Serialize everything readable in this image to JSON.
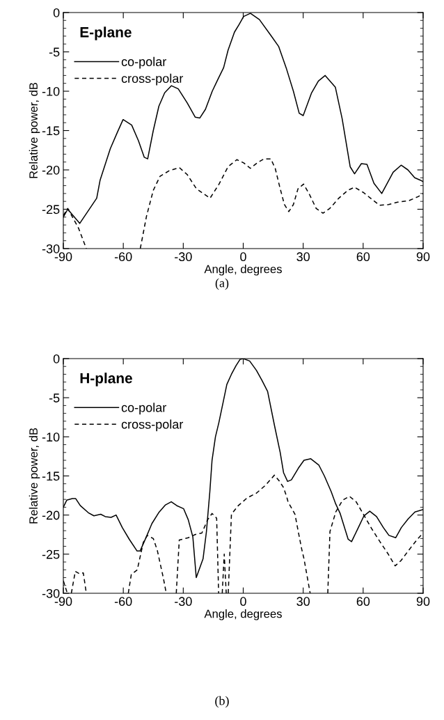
{
  "chart_data": [
    {
      "type": "line",
      "title": "E-plane",
      "xlabel": "Angle, degrees",
      "ylabel": "Relative power, dB",
      "xlim": [
        -90,
        90
      ],
      "xticks": [
        -90,
        -60,
        -30,
        0,
        30,
        60,
        90
      ],
      "ylim": [
        -30,
        0
      ],
      "yticks": [
        -30,
        -25,
        -20,
        -15,
        -10,
        -5,
        0
      ],
      "legend": "top left",
      "grid": false,
      "annotations": [
        "(a)"
      ],
      "series": [
        {
          "name": "co-polar",
          "color": "#000000",
          "line_style": "solid",
          "x": [
            -90,
            -87.8,
            -81.8,
            -73.3,
            -71.6,
            -66.5,
            -63.1,
            -60.1,
            -55.8,
            -52.4,
            -49.5,
            -47.8,
            -45.0,
            -42.2,
            -39.3,
            -35.9,
            -32.5,
            -28.0,
            -24.0,
            -21.7,
            -18.9,
            -15.5,
            -12.7,
            -9.8,
            -7.6,
            -4.4,
            -2.0,
            0.2,
            3.6,
            8.1,
            13.8,
            17.7,
            21.7,
            25.1,
            28.0,
            30.0,
            34.2,
            37.6,
            41.0,
            46.1,
            49.5,
            53.5,
            55.7,
            59.1,
            61.9,
            65.4,
            69.3,
            75.0,
            79.0,
            82.4,
            85.8,
            88.6,
            90
          ],
          "values": [
            -26,
            -25.0,
            -26.8,
            -23.6,
            -21.3,
            -17.3,
            -15.3,
            -13.6,
            -14.3,
            -16.3,
            -18.4,
            -18.6,
            -15.0,
            -11.9,
            -10.2,
            -9.3,
            -9.7,
            -11.5,
            -13.3,
            -13.4,
            -12.3,
            -10.0,
            -8.5,
            -7.0,
            -4.8,
            -2.5,
            -1.5,
            -0.5,
            -0.1,
            -0.9,
            -2.9,
            -4.3,
            -7.2,
            -10.0,
            -12.8,
            -13.1,
            -10.2,
            -8.7,
            -8.0,
            -9.5,
            -13.5,
            -19.6,
            -20.5,
            -19.2,
            -19.3,
            -21.7,
            -23.0,
            -20.3,
            -19.4,
            -20.0,
            -21.0,
            -21.3,
            -21.5
          ]
        },
        {
          "name": "cross-polar",
          "color": "#000000",
          "line_style": "dashed",
          "x": [
            -90,
            -87.8,
            -85.2,
            -82.4,
            -78.5,
            -66,
            -51.5,
            -48.4,
            -45.0,
            -41.6,
            -37.0,
            -32.0,
            -28.0,
            -23.4,
            -16.6,
            -12.1,
            -7.6,
            -3.2,
            0.2,
            3.6,
            7.0,
            10.4,
            13.8,
            16.0,
            18.3,
            20.6,
            22.8,
            25.1,
            27.4,
            30.2,
            33.1,
            36.5,
            39.9,
            43.3,
            47.8,
            52.3,
            55.7,
            60.3,
            63.7,
            68.2,
            72.7,
            77.3,
            83.0,
            87.5,
            90
          ],
          "values": [
            -25.8,
            -24.9,
            -26.1,
            -27.4,
            -30,
            null,
            -30,
            -25.9,
            -22.6,
            -20.8,
            -20.1,
            -19.7,
            -20.6,
            -22.4,
            -23.6,
            -21.8,
            -19.6,
            -18.7,
            -19.1,
            -19.8,
            -19.1,
            -18.6,
            -18.6,
            -19.8,
            -22.2,
            -24.4,
            -25.3,
            -24.4,
            -22.4,
            -21.8,
            -23.1,
            -24.9,
            -25.5,
            -24.9,
            -23.6,
            -22.6,
            -22.2,
            -22.9,
            -23.6,
            -24.5,
            -24.4,
            -24.1,
            -23.9,
            -23.4,
            -23.0
          ]
        }
      ]
    },
    {
      "type": "line",
      "title": "H-plane",
      "xlabel": "Angle, degrees",
      "ylabel": "Relative power, dB",
      "xlim": [
        -90,
        90
      ],
      "xticks": [
        -90,
        -60,
        -30,
        0,
        30,
        60,
        90
      ],
      "ylim": [
        -30,
        0
      ],
      "yticks": [
        -30,
        -25,
        -20,
        -15,
        -10,
        -5,
        0
      ],
      "legend": "top left",
      "grid": false,
      "annotations": [
        "(b)"
      ],
      "series": [
        {
          "name": "co-polar",
          "color": "#000000",
          "line_style": "solid",
          "x": [
            -90,
            -88.3,
            -85.5,
            -83.8,
            -81.5,
            -77.5,
            -74.7,
            -71.3,
            -69.0,
            -66.1,
            -63.6,
            -60.5,
            -57.0,
            -53.1,
            -51.6,
            -48.5,
            -45.7,
            -42.3,
            -38.9,
            -36.0,
            -33.2,
            -29.8,
            -27.5,
            -25.2,
            -23.5,
            -20.1,
            -18.4,
            -16.7,
            -15.6,
            -13.9,
            -12.2,
            -9.9,
            -8.2,
            -5.9,
            -3.6,
            -1.6,
            0,
            3.2,
            6.6,
            9.4,
            12.2,
            15.6,
            18.5,
            20.2,
            22.2,
            24.1,
            27.6,
            30.4,
            33.8,
            37.8,
            40.6,
            44.0,
            46.3,
            48.5,
            52.5,
            54.2,
            57.6,
            60.4,
            63.3,
            66.7,
            70.1,
            72.9,
            76.3,
            79.1,
            82.5,
            85.9,
            90
          ],
          "values": [
            -19.0,
            -18.1,
            -17.9,
            -17.9,
            -18.8,
            -19.7,
            -20.1,
            -19.9,
            -20.2,
            -20.3,
            -20.0,
            -21.6,
            -23.1,
            -24.6,
            -24.6,
            -22.8,
            -21.1,
            -19.7,
            -18.7,
            -18.3,
            -18.8,
            -19.2,
            -20.6,
            -22.8,
            -28.0,
            -25.6,
            -22.1,
            -17.0,
            -13.0,
            -10.0,
            -8.2,
            -5.4,
            -3.3,
            -2.0,
            -0.9,
            -0.1,
            0,
            -0.3,
            -1.5,
            -2.8,
            -4.2,
            -8.5,
            -12.0,
            -14.6,
            -15.7,
            -15.5,
            -14.0,
            -13.0,
            -12.8,
            -13.6,
            -15.0,
            -17.0,
            -18.6,
            -19.8,
            -23.1,
            -23.4,
            -21.6,
            -20.1,
            -19.5,
            -20.2,
            -21.6,
            -22.6,
            -22.9,
            -21.6,
            -20.5,
            -19.6,
            -19.3
          ]
        },
        {
          "name": "cross-polar",
          "color": "#000000",
          "line_style": "dashed",
          "x": [
            -90,
            -88,
            -87,
            -86,
            -84,
            -82,
            -80,
            -78.5,
            -68,
            -57.5,
            -56,
            -53,
            -50,
            -48,
            -45,
            -43,
            -40,
            -38.5,
            -36,
            -33.5,
            -32,
            -27.5,
            -24.1,
            -20.7,
            -17.8,
            -15.6,
            -13.3,
            -12.3,
            -11.4,
            -10.5,
            -9.5,
            -8.5,
            -8,
            -7.5,
            -5.9,
            -2.5,
            2.0,
            6.6,
            11.1,
            15.6,
            17.9,
            20.2,
            21.9,
            22.4,
            25.9,
            27.6,
            29.3,
            30.4,
            33.5,
            38,
            42.3,
            43.4,
            46.3,
            49.7,
            53.1,
            56.5,
            59.9,
            64.4,
            68.9,
            72.3,
            76,
            79,
            82.5,
            87.1,
            90
          ],
          "values": [
            -28.4,
            -30,
            null,
            -30,
            -27.2,
            -27.5,
            -27.4,
            -30,
            null,
            -30,
            -27.6,
            -27.0,
            -23.5,
            -22.6,
            -23.0,
            -24.5,
            -28,
            -30,
            null,
            -30,
            -23.2,
            -22.9,
            -22.5,
            -22.3,
            -20.6,
            -19.8,
            -20.4,
            -30,
            null,
            -30,
            -25,
            -30,
            null,
            -30,
            -19.9,
            -18.8,
            -17.8,
            -17.2,
            -16.2,
            -14.9,
            -15.6,
            -16.5,
            -17.8,
            -18.3,
            -19.9,
            -22.2,
            -24.4,
            -25.6,
            -30,
            null,
            -30,
            -22.1,
            -19.6,
            -18.1,
            -17.6,
            -18.3,
            -19.8,
            -21.8,
            -23.6,
            -24.9,
            -26.5,
            -25.8,
            -24.6,
            -23.1,
            -22.3
          ]
        }
      ]
    }
  ]
}
